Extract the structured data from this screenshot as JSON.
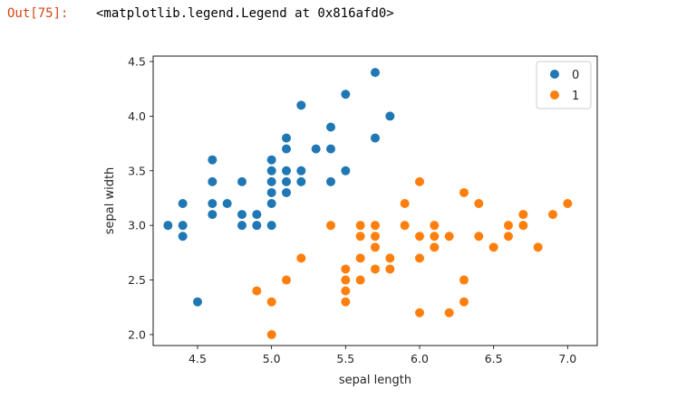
{
  "output": {
    "prompt": "Out[75]:",
    "text": "<matplotlib.legend.Legend at 0x816afd0>"
  },
  "chart_data": {
    "type": "scatter",
    "title": "",
    "xlabel": "sepal length",
    "ylabel": "sepal width",
    "xlim": [
      4.2,
      7.2
    ],
    "ylim": [
      1.9,
      4.55
    ],
    "xticks": [
      "4.5",
      "5.0",
      "5.5",
      "6.0",
      "6.5",
      "7.0"
    ],
    "yticks": [
      "2.0",
      "2.5",
      "3.0",
      "3.5",
      "4.0",
      "4.5"
    ],
    "grid": false,
    "legend": "top-right",
    "series": [
      {
        "name": "0",
        "color": "#1f77b4",
        "points": [
          [
            4.3,
            3.0
          ],
          [
            4.4,
            3.0
          ],
          [
            4.4,
            2.9
          ],
          [
            4.4,
            3.2
          ],
          [
            4.5,
            2.3
          ],
          [
            4.6,
            3.1
          ],
          [
            4.6,
            3.2
          ],
          [
            4.6,
            3.4
          ],
          [
            4.6,
            3.6
          ],
          [
            4.7,
            3.2
          ],
          [
            4.8,
            3.0
          ],
          [
            4.8,
            3.1
          ],
          [
            4.8,
            3.4
          ],
          [
            4.9,
            3.0
          ],
          [
            4.9,
            3.1
          ],
          [
            5.0,
            3.0
          ],
          [
            5.0,
            3.2
          ],
          [
            5.0,
            3.3
          ],
          [
            5.0,
            3.4
          ],
          [
            5.0,
            3.5
          ],
          [
            5.0,
            3.6
          ],
          [
            5.1,
            3.3
          ],
          [
            5.1,
            3.4
          ],
          [
            5.1,
            3.5
          ],
          [
            5.1,
            3.7
          ],
          [
            5.1,
            3.8
          ],
          [
            5.2,
            3.4
          ],
          [
            5.2,
            3.5
          ],
          [
            5.2,
            4.1
          ],
          [
            5.3,
            3.7
          ],
          [
            5.4,
            3.4
          ],
          [
            5.4,
            3.7
          ],
          [
            5.4,
            3.9
          ],
          [
            5.5,
            3.5
          ],
          [
            5.5,
            4.2
          ],
          [
            5.7,
            3.8
          ],
          [
            5.7,
            4.4
          ],
          [
            5.8,
            4.0
          ]
        ]
      },
      {
        "name": "1",
        "color": "#ff7f0e",
        "points": [
          [
            4.9,
            2.4
          ],
          [
            5.0,
            2.0
          ],
          [
            5.0,
            2.3
          ],
          [
            5.1,
            2.5
          ],
          [
            5.2,
            2.7
          ],
          [
            5.4,
            3.0
          ],
          [
            5.5,
            2.3
          ],
          [
            5.5,
            2.4
          ],
          [
            5.5,
            2.5
          ],
          [
            5.5,
            2.6
          ],
          [
            5.6,
            2.5
          ],
          [
            5.6,
            2.7
          ],
          [
            5.6,
            2.9
          ],
          [
            5.6,
            3.0
          ],
          [
            5.7,
            2.6
          ],
          [
            5.7,
            2.8
          ],
          [
            5.7,
            2.9
          ],
          [
            5.7,
            3.0
          ],
          [
            5.8,
            2.6
          ],
          [
            5.8,
            2.7
          ],
          [
            5.9,
            3.0
          ],
          [
            5.9,
            3.2
          ],
          [
            6.0,
            2.2
          ],
          [
            6.0,
            2.7
          ],
          [
            6.0,
            2.9
          ],
          [
            6.0,
            3.4
          ],
          [
            6.1,
            2.8
          ],
          [
            6.1,
            2.9
          ],
          [
            6.1,
            3.0
          ],
          [
            6.2,
            2.2
          ],
          [
            6.2,
            2.9
          ],
          [
            6.3,
            2.3
          ],
          [
            6.3,
            2.5
          ],
          [
            6.3,
            3.3
          ],
          [
            6.4,
            2.9
          ],
          [
            6.4,
            3.2
          ],
          [
            6.5,
            2.8
          ],
          [
            6.6,
            2.9
          ],
          [
            6.6,
            3.0
          ],
          [
            6.7,
            3.0
          ],
          [
            6.7,
            3.1
          ],
          [
            6.8,
            2.8
          ],
          [
            6.9,
            3.1
          ],
          [
            7.0,
            3.2
          ]
        ]
      }
    ]
  }
}
